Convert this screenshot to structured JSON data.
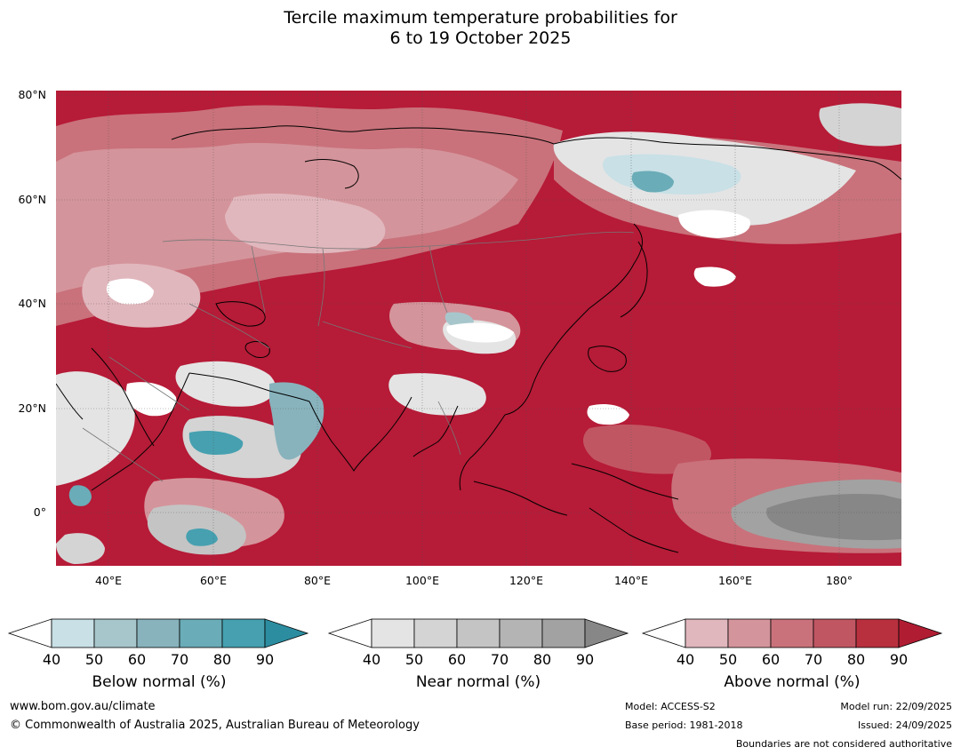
{
  "title_line1": "Tercile maximum temperature probabilities for",
  "title_line2": "6 to 19 October 2025",
  "map": {
    "lat_labels": [
      "80°N",
      "60°N",
      "40°N",
      "20°N",
      "0°"
    ],
    "lon_labels": [
      "40°E",
      "60°E",
      "80°E",
      "100°E",
      "120°E",
      "140°E",
      "160°E",
      "180°"
    ],
    "background_color": "#b61b37"
  },
  "legends": [
    {
      "title": "Below normal (%)",
      "ticks": [
        "40",
        "50",
        "60",
        "70",
        "80",
        "90"
      ],
      "colors": [
        "#c8e0e6",
        "#a7c6cc",
        "#88b3bd",
        "#6aacb7",
        "#46a0b0",
        "#2c8da0"
      ]
    },
    {
      "title": "Near normal (%)",
      "ticks": [
        "40",
        "50",
        "60",
        "70",
        "80",
        "90"
      ],
      "colors": [
        "#e4e4e4",
        "#d4d4d4",
        "#c4c4c4",
        "#b4b4b4",
        "#a2a2a2",
        "#878787"
      ]
    },
    {
      "title": "Above normal (%)",
      "ticks": [
        "40",
        "50",
        "60",
        "70",
        "80",
        "90"
      ],
      "colors": [
        "#e0b7bd",
        "#d4949b",
        "#c9727b",
        "#c15663",
        "#b8303e",
        "#b01d33"
      ]
    }
  ],
  "footer": {
    "website": "www.bom.gov.au/climate",
    "copyright": "© Commonwealth of Australia 2025, Australian Bureau of Meteorology",
    "model": "Model: ACCESS-S2",
    "base_period": "Base period: 1981-2018",
    "model_run": "Model run: 22/09/2025",
    "issued": "Issued: 24/09/2025",
    "disclaimer": "Boundaries are not considered authoritative"
  }
}
